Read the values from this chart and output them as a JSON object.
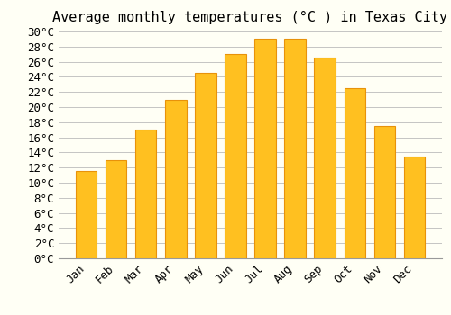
{
  "title": "Average monthly temperatures (°C ) in Texas City",
  "months": [
    "Jan",
    "Feb",
    "Mar",
    "Apr",
    "May",
    "Jun",
    "Jul",
    "Aug",
    "Sep",
    "Oct",
    "Nov",
    "Dec"
  ],
  "values": [
    11.5,
    13.0,
    17.0,
    21.0,
    24.5,
    27.0,
    29.0,
    29.0,
    26.5,
    22.5,
    17.5,
    13.5
  ],
  "bar_color": "#FFC020",
  "bar_edge_color": "#E8920A",
  "background_color": "#FFFFF5",
  "grid_color": "#BBBBBB",
  "ylim": [
    0,
    30
  ],
  "ytick_step": 2,
  "title_fontsize": 11,
  "tick_fontsize": 9,
  "font_family": "monospace"
}
